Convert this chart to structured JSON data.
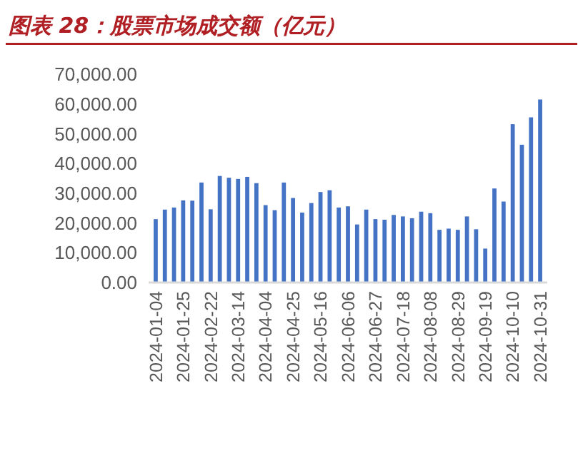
{
  "chart_data": {
    "type": "bar",
    "title": "图表 28：股票市场成交额（亿元）",
    "categories": [
      "2024-01-04",
      null,
      null,
      "2024-01-25",
      null,
      null,
      "2024-02-22",
      null,
      null,
      "2024-03-14",
      null,
      null,
      "2024-04-04",
      null,
      null,
      "2024-04-25",
      null,
      null,
      "2024-05-16",
      null,
      null,
      "2024-06-06",
      null,
      null,
      "2024-06-27",
      null,
      null,
      "2024-07-18",
      null,
      null,
      "2024-08-08",
      null,
      null,
      "2024-08-29",
      null,
      null,
      "2024-09-19",
      null,
      null,
      "2024-10-10",
      null,
      null,
      "2024-10-31"
    ],
    "values": [
      21300,
      24500,
      25200,
      27600,
      27500,
      33600,
      24600,
      35800,
      35200,
      34800,
      35500,
      33400,
      26000,
      24300,
      33600,
      28400,
      23500,
      26700,
      30400,
      31000,
      25200,
      25600,
      19500,
      24500,
      21300,
      21100,
      22700,
      22200,
      21600,
      23800,
      23300,
      17700,
      18100,
      17700,
      22200,
      17900,
      11400,
      31600,
      27200,
      53200,
      46300,
      55500,
      61500
    ],
    "color": "#4472c4",
    "ylim": [
      0,
      70000
    ],
    "yticks": [
      {
        "value": 0,
        "label": "0.00"
      },
      {
        "value": 10000,
        "label": "10,000.00"
      },
      {
        "value": 20000,
        "label": "20,000.00"
      },
      {
        "value": 30000,
        "label": "30,000.00"
      },
      {
        "value": 40000,
        "label": "40,000.00"
      },
      {
        "value": 50000,
        "label": "50,000.00"
      },
      {
        "value": 60000,
        "label": "60,000.00"
      },
      {
        "value": 70000,
        "label": "70,000.00"
      }
    ],
    "grid": false
  }
}
